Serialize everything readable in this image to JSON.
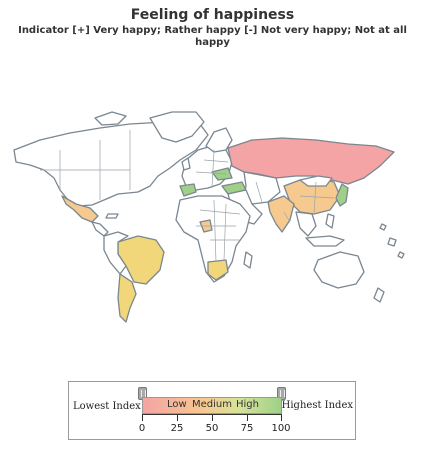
{
  "header": {
    "title": "Feeling of happiness",
    "subtitle": "Indicator [+] Very happy; Rather happy [-] Not very happy; Not at all happy"
  },
  "map": {
    "colors": {
      "no_data": "#ffffff",
      "low": "#f4a4a4",
      "medium_low": "#f6c98f",
      "medium": "#f1d77a",
      "high": "#9fd087",
      "ocean": "#ffffff",
      "coast": "#7a8690"
    },
    "regions": {
      "russia": "low",
      "mexico": "medium_low",
      "brazil": "medium",
      "argentina": "medium",
      "india": "medium_low",
      "china": "medium_low",
      "south_africa": "medium",
      "nigeria": "medium_low",
      "japan": "high",
      "turkey": "high",
      "ukraine": "high",
      "spain": "high"
    }
  },
  "legend": {
    "lowest_label": "Lowest Index",
    "highest_label": "Highest Index",
    "low": "Low",
    "medium": "Medium",
    "high": "High",
    "ticks": [
      "0",
      "25",
      "50",
      "75",
      "100"
    ]
  }
}
